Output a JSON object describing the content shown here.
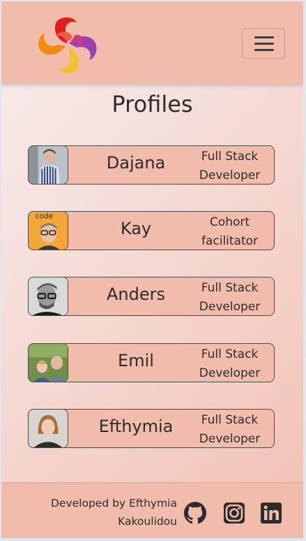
{
  "header": {
    "logo_icon": "swirl-logo-icon",
    "menu_icon": "hamburger-menu-icon"
  },
  "page": {
    "title": "Profiles"
  },
  "profiles": [
    {
      "name": "Dajana",
      "role": "Full Stack\nDeveloper",
      "avatar": "dajana-avatar"
    },
    {
      "name": "Kay",
      "role": "Cohort\nfacilitator",
      "avatar": "kay-avatar",
      "avatar_text": "code"
    },
    {
      "name": "Anders",
      "role": "Full Stack\nDeveloper",
      "avatar": "anders-avatar"
    },
    {
      "name": "Emil",
      "role": "Full Stack\nDeveloper",
      "avatar": "emil-avatar"
    },
    {
      "name": "Efthymia",
      "role": "Full Stack\nDeveloper",
      "avatar": "efthymia-avatar"
    }
  ],
  "footer": {
    "credit": "Developed by Efthymia\nKakoulidou",
    "icons": [
      "github-icon",
      "instagram-icon",
      "linkedin-icon"
    ]
  },
  "colors": {
    "header_bg": "#f2bcac",
    "card_bg": "#f2bcac",
    "text": "#2c2c2c"
  }
}
